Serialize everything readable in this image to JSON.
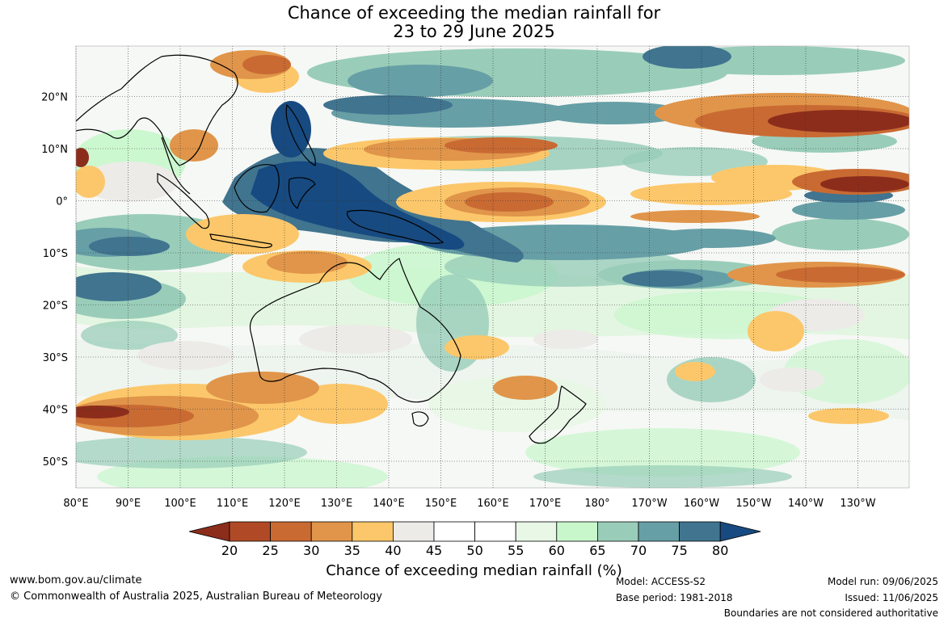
{
  "title": {
    "line1": "Chance of exceeding the median rainfall for",
    "line2": "23 to 29 June 2025"
  },
  "map": {
    "lat_labels": [
      "20°N",
      "10°N",
      "0°",
      "10°S",
      "20°S",
      "30°S",
      "40°S",
      "50°S"
    ],
    "lat_values": [
      20,
      10,
      0,
      -10,
      -20,
      -30,
      -40,
      -50
    ],
    "lon_labels": [
      "80°E",
      "90°E",
      "100°E",
      "110°E",
      "120°E",
      "130°E",
      "140°E",
      "150°E",
      "160°E",
      "170°E",
      "180°",
      "170°W",
      "160°W",
      "150°W",
      "140°W",
      "130°W"
    ],
    "lon_values": [
      80,
      90,
      100,
      110,
      120,
      130,
      140,
      150,
      160,
      170,
      180,
      190,
      200,
      210,
      220,
      230
    ],
    "lat_range": [
      -55,
      30
    ],
    "lon_range": [
      80,
      240
    ]
  },
  "colorbar": {
    "ticks": [
      "20",
      "25",
      "30",
      "35",
      "40",
      "45",
      "50",
      "55",
      "60",
      "65",
      "70",
      "75",
      "80"
    ],
    "colors": [
      "#8c2d1c",
      "#b04a26",
      "#c96a33",
      "#e0954a",
      "#fcc76a",
      "#ecebe7",
      "#ffffff",
      "#ffffff",
      "#e8f7e6",
      "#c8f7cc",
      "#99cdb9",
      "#679fa6",
      "#40748f",
      "#174a80"
    ],
    "label": "Chance of exceeding median rainfall (%)"
  },
  "footer": {
    "url": "www.bom.gov.au/climate",
    "copyright": "© Commonwealth of Australia 2025, Australian Bureau of Meteorology",
    "model": "Model: ACCESS-S2",
    "base_period": "Base period: 1981-2018",
    "model_run": "Model run: 09/06/2025",
    "issued": "Issued: 11/06/2025",
    "disclaimer": "Boundaries are not considered authoritative"
  }
}
